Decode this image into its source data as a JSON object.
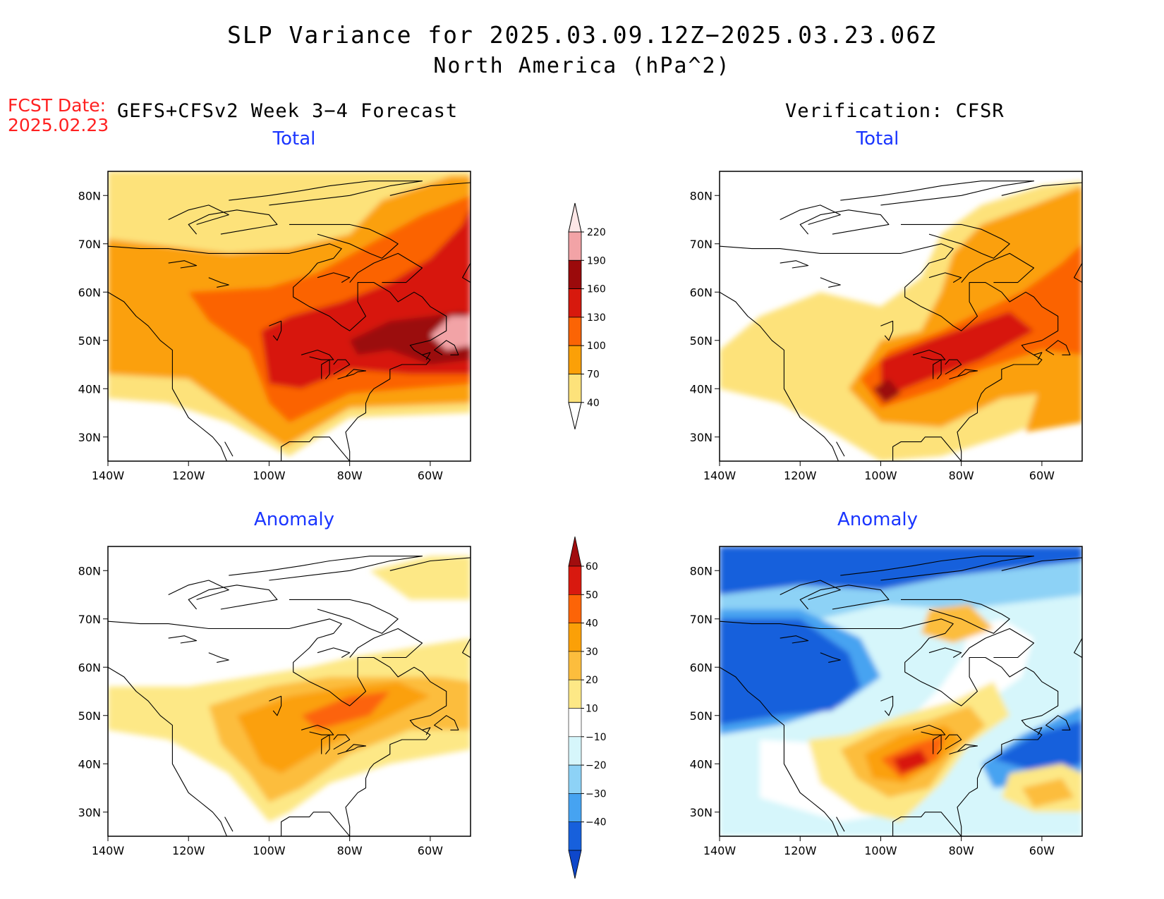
{
  "title": "SLP Variance for 2025.03.09.12Z−2025.03.23.06Z",
  "subtitle": "North America (hPa^2)",
  "fcst_date_label": "FCST Date:",
  "fcst_date_value": "2025.02.23",
  "left_heading": "GEFS+CFSv2 Week 3−4 Forecast",
  "right_heading": "Verification: CFSR",
  "panel_titles": {
    "tl": "Total",
    "tr": "Total",
    "bl": "Anomaly",
    "br": "Anomaly"
  },
  "axes": {
    "x_ticks": [
      "140W",
      "120W",
      "100W",
      "80W",
      "60W"
    ],
    "y_ticks": [
      "80N",
      "70N",
      "60N",
      "50N",
      "40N",
      "30N"
    ]
  },
  "colorbars": {
    "total": {
      "levels": [
        "220",
        "190",
        "160",
        "130",
        "100",
        "70",
        "40"
      ],
      "colors": [
        "#fde7e7",
        "#f2a3a6",
        "#9b0a0b",
        "#d7190d",
        "#fb6405",
        "#fba007",
        "#fde27a"
      ]
    },
    "anomaly": {
      "levels": [
        "60",
        "50",
        "40",
        "30",
        "20",
        "10",
        "−10",
        "−20",
        "−30",
        "−40"
      ],
      "colors": [
        "#a10d0e",
        "#d8190f",
        "#fc6407",
        "#fba007",
        "#fcbd3d",
        "#fde886",
        "#ffffff",
        "#d6f6fb",
        "#8dd2f6",
        "#46a3f1",
        "#1760dc",
        "#0e47cb"
      ]
    }
  },
  "chart_data": [
    {
      "type": "heatmap",
      "panel": "GEFS+CFSv2 Week 3−4 Forecast",
      "title": "Total",
      "xlim": [
        "140W",
        "50W"
      ],
      "ylim": [
        "25N",
        "85N"
      ],
      "levels": [
        40,
        70,
        100,
        130,
        160,
        190,
        220
      ]
    },
    {
      "type": "heatmap",
      "panel": "Verification: CFSR",
      "title": "Total",
      "xlim": [
        "140W",
        "50W"
      ],
      "ylim": [
        "25N",
        "85N"
      ],
      "levels": [
        40,
        70,
        100,
        130,
        160,
        190,
        220
      ]
    },
    {
      "type": "heatmap",
      "panel": "GEFS+CFSv2 Week 3−4 Forecast",
      "title": "Anomaly",
      "xlim": [
        "140W",
        "50W"
      ],
      "ylim": [
        "25N",
        "85N"
      ],
      "levels": [
        -40,
        -30,
        -20,
        -10,
        10,
        20,
        30,
        40,
        50,
        60
      ]
    },
    {
      "type": "heatmap",
      "panel": "Verification: CFSR",
      "title": "Anomaly",
      "xlim": [
        "140W",
        "50W"
      ],
      "ylim": [
        "25N",
        "85N"
      ],
      "levels": [
        -40,
        -30,
        -20,
        -10,
        10,
        20,
        30,
        40,
        50,
        60
      ]
    }
  ]
}
